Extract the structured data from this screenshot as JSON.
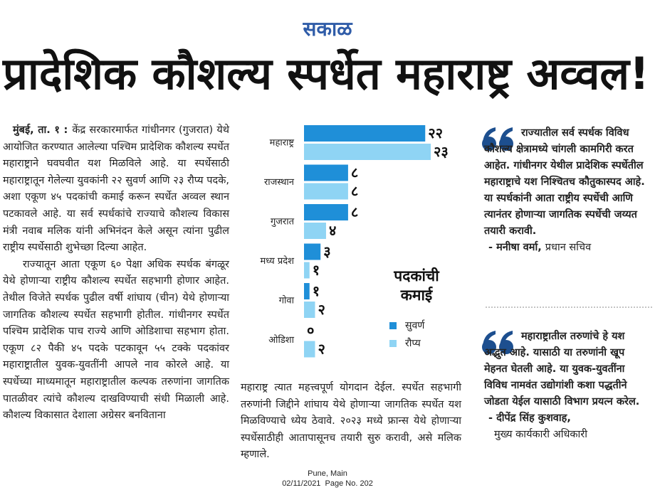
{
  "masthead": "सकाळ",
  "headline": "प्रादेशिक कौशल्य स्पर्धेत महाराष्ट्र अव्वल!",
  "article": {
    "dateline": "मुंबई, ता. १ :",
    "paragraphs": [
      "केंद्र सरकारमार्फत गांधीनगर (गुजरात) येथे आयोजित करण्यात आलेल्या पश्चिम प्रादेशिक कौशल्य स्पर्धेत महाराष्ट्राने घवघवीत यश मिळविले आहे. या स्पर्धेसाठी महाराष्ट्रातून गेलेल्या युवकांनी २२ सुवर्ण आणि २३ रौप्य पदके, अशा एकूण ४५ पदकांची कमाई करून स्पर्धेत अव्वल स्थान पटकावले आहे. या सर्व स्पर्धकांचे राज्याचे कौशल्य विकास मंत्री नवाब मलिक यांनी अभिनंदन केले असून त्यांना पुढील राष्ट्रीय स्पर्धेसाठी शुभेच्छा दिल्या आहेत.",
      "राज्यातून आता एकूण ६० पेक्षा अधिक स्पर्धक बंगळूर येथे होणाऱ्या राष्ट्रीय कौशल्य स्पर्धेत सहभागी होणार आहेत. तेथील विजेते स्पर्धक पुढील वर्षी शांघाय (चीन) येथे होणाऱ्या जागतिक कौशल्य स्पर्धेत सहभागी होतील. गांधीनगर स्पर्धेत पश्चिम प्रादेशिक पाच राज्ये आणि ओडिशाचा सहभाग होता. एकूण ८२ पैकी ४५ पदके पटकावून ५५ टक्के पदकांवर महाराष्ट्रातील युवक-युवतींनी आपले नाव कोरले आहे. या स्पर्धेच्या माध्यमातून महाराष्ट्रातील कल्पक तरुणांना जागतिक पातळीवर त्यांचे कौशल्य दाखविण्याची संधी मिळाली आहे. कौशल्य विकासात देशाला अग्रेसर बनविताना",
      "महाराष्ट्र त्यात महत्त्वपूर्ण योगदान देईल. स्पर्धेत सहभागी तरुणांनी जिद्दीने शांघाय येथे होणाऱ्या जागतिक स्पर्धेत यश मिळविण्याचे ध्येय ठेवावे. २०२३ मध्ये फ्रान्स येथे होणाऱ्या स्पर्धेसाठीही आतापासूनच तयारी सुरु करावी, असे मलिक म्हणाले."
    ]
  },
  "chart_data": {
    "type": "bar",
    "orientation": "horizontal",
    "legend_title": "पदकांची कमाई",
    "categories": [
      "महाराष्ट्र",
      "राजस्थान",
      "गुजरात",
      "मध्य प्रदेश",
      "गोवा",
      "ओडिशा"
    ],
    "series": [
      {
        "name": "सुवर्ण",
        "color": "#1f8fd8",
        "values": [
          22,
          8,
          8,
          3,
          1,
          0
        ],
        "value_labels": [
          "२२",
          "८",
          "८",
          "३",
          "१",
          "०"
        ]
      },
      {
        "name": "रौप्य",
        "color": "#8fd4f4",
        "values": [
          23,
          8,
          4,
          1,
          2,
          2
        ],
        "value_labels": [
          "२३",
          "८",
          "४",
          "१",
          "२",
          "२"
        ]
      }
    ]
  },
  "quotes": [
    {
      "text": "राज्यातील सर्व स्पर्धक विविध कौशल्य क्षेत्रामध्ये चांगली कामगिरी करत आहेत. गांधीनगर येथील प्रादेशिक स्पर्धेतील महाराष्ट्राचे यश निश्चितच कौतुकास्पद आहे. या स्पर्धकांनी आता राष्ट्रीय स्पर्धेची आणि त्यानंतर होणाऱ्या जागतिक स्पर्धेची जय्यत तयारी करावी.",
      "author": "- मनीषा वर्मा,",
      "role": "प्रधान सचिव"
    },
    {
      "text": "महाराष्ट्रातील तरुणांचे हे यश अद्भुत आहे. यासाठी या तरुणांनी खूप मेहनत घेतली आहे. या युवक-युवतींना विविध नामवंत उद्योगांशी कशा पद्धतीने जोडता येईल यासाठी विभाग प्रयत्न करेल.",
      "author": "- दीपेंद्र सिंह कुशवाह,",
      "role": "मुख्य कार्यकारी अधिकारी"
    }
  ],
  "footer": {
    "edition": "Pune, Main",
    "date_page": "02/11/2021  Page No. 202"
  }
}
